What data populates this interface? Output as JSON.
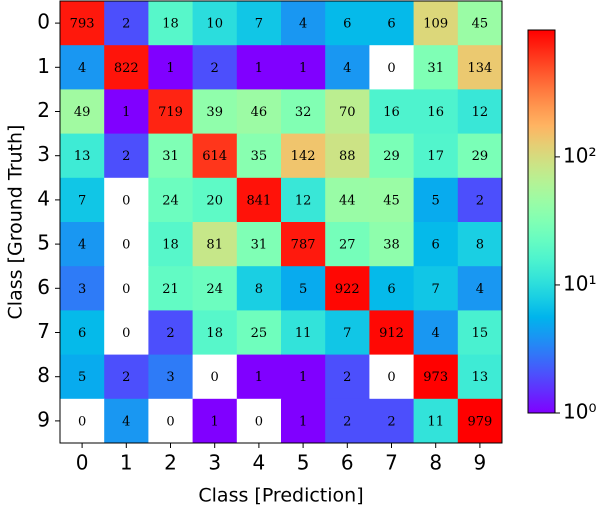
{
  "chart_data": {
    "type": "heatmap",
    "xlabel": "Class [Prediction]",
    "ylabel": "Class [Ground Truth]",
    "x_categories": [
      "0",
      "1",
      "2",
      "3",
      "4",
      "5",
      "6",
      "7",
      "8",
      "9"
    ],
    "y_categories": [
      "0",
      "1",
      "2",
      "3",
      "4",
      "5",
      "6",
      "7",
      "8",
      "9"
    ],
    "values": [
      [
        793,
        2,
        18,
        10,
        7,
        4,
        6,
        6,
        109,
        45
      ],
      [
        4,
        822,
        1,
        2,
        1,
        1,
        4,
        0,
        31,
        134
      ],
      [
        49,
        1,
        719,
        39,
        46,
        32,
        70,
        16,
        16,
        12
      ],
      [
        13,
        2,
        31,
        614,
        35,
        142,
        88,
        29,
        17,
        29
      ],
      [
        7,
        0,
        24,
        20,
        841,
        12,
        44,
        45,
        5,
        2
      ],
      [
        4,
        0,
        18,
        81,
        31,
        787,
        27,
        38,
        6,
        8
      ],
      [
        3,
        0,
        21,
        24,
        8,
        5,
        922,
        6,
        7,
        4
      ],
      [
        6,
        0,
        2,
        18,
        25,
        11,
        7,
        912,
        4,
        15
      ],
      [
        5,
        2,
        3,
        0,
        1,
        1,
        2,
        0,
        973,
        13
      ],
      [
        0,
        4,
        0,
        1,
        0,
        1,
        2,
        2,
        11,
        979
      ]
    ],
    "colormap": "rainbow",
    "color_scale": "log",
    "masked_color": "#ffffff",
    "clim": [
      1,
      979
    ],
    "cticks": [
      {
        "value": 1,
        "label": "10⁰"
      },
      {
        "value": 10,
        "label": "10¹"
      },
      {
        "value": 100,
        "label": "10²"
      }
    ]
  }
}
